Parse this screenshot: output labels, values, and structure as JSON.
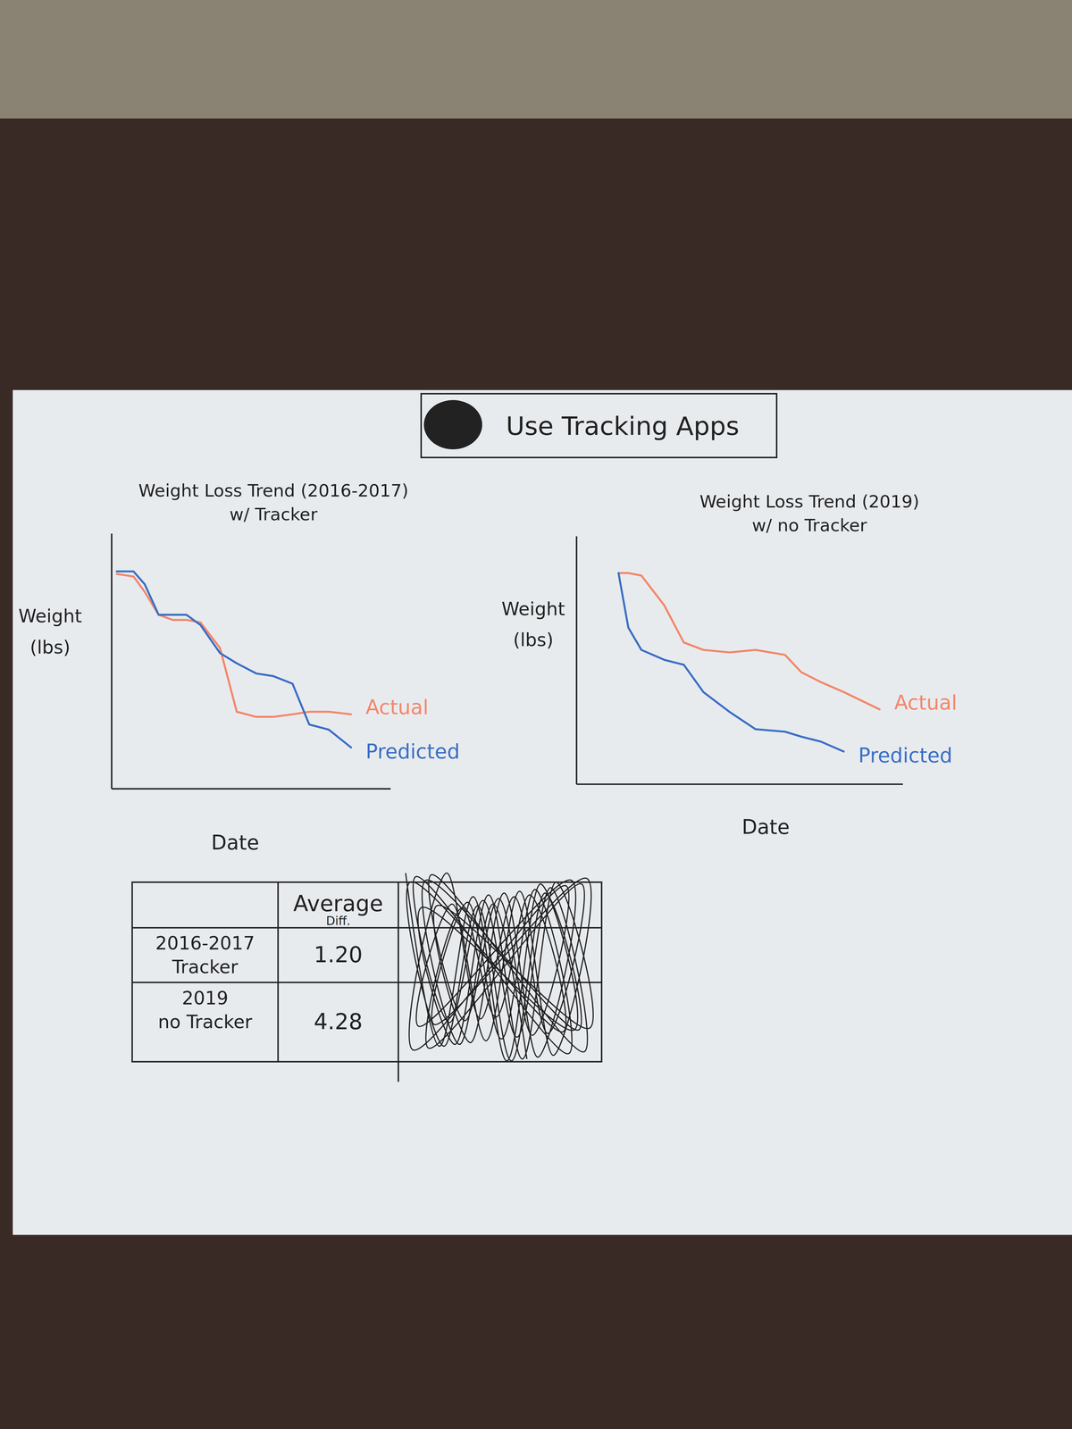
{
  "header": {
    "title": "Use Tracking Apps"
  },
  "chart_data": [
    {
      "type": "line",
      "title": "Weight Loss Trend (2016-2017)",
      "subtitle": "w/ Tracker",
      "x_label": "Date",
      "y_label": "Weight (lbs)",
      "x": [
        2,
        8,
        12,
        17,
        22,
        27,
        32,
        39,
        45,
        52,
        58,
        65,
        71,
        78,
        86
      ],
      "series": [
        {
          "name": "Actual",
          "color": "#f4866a",
          "values": [
            84,
            83,
            77,
            68,
            66,
            66,
            65,
            55,
            30,
            28,
            28,
            29,
            30,
            30,
            29
          ]
        },
        {
          "name": "Predicted",
          "color": "#3b6fc4",
          "values": [
            85,
            85,
            80,
            68,
            68,
            68,
            64,
            53,
            49,
            45,
            44,
            41,
            25,
            23,
            16
          ]
        }
      ],
      "xlim": [
        0,
        100
      ],
      "ylim": [
        0,
        100
      ],
      "tick_labels": false
    },
    {
      "type": "line",
      "title": "Weight Loss Trend (2019)",
      "subtitle": "w/ no Tracker",
      "x_label": "Date",
      "y_label": "Weight (lbs)",
      "x": [
        13,
        16,
        20,
        27,
        33,
        39,
        47,
        55,
        64,
        69,
        75,
        82,
        93
      ],
      "series": [
        {
          "name": "Actual",
          "color": "#f4866a",
          "values": [
            85,
            85,
            84,
            72,
            57,
            54,
            53,
            54,
            52,
            45,
            41,
            37,
            30
          ]
        },
        {
          "name": "Predicted",
          "color": "#3b6fc4",
          "values": [
            85,
            63,
            54,
            50,
            48,
            37,
            29,
            22,
            21,
            19,
            17,
            13,
            null
          ]
        }
      ],
      "xlim": [
        0,
        100
      ],
      "ylim": [
        0,
        100
      ],
      "tick_labels": false
    }
  ],
  "table": {
    "header": [
      "Average Diff."
    ],
    "rows": [
      [
        "2016-2017 Tracker",
        "1.20"
      ],
      [
        "2019 no Tracker",
        "4.28"
      ]
    ]
  }
}
